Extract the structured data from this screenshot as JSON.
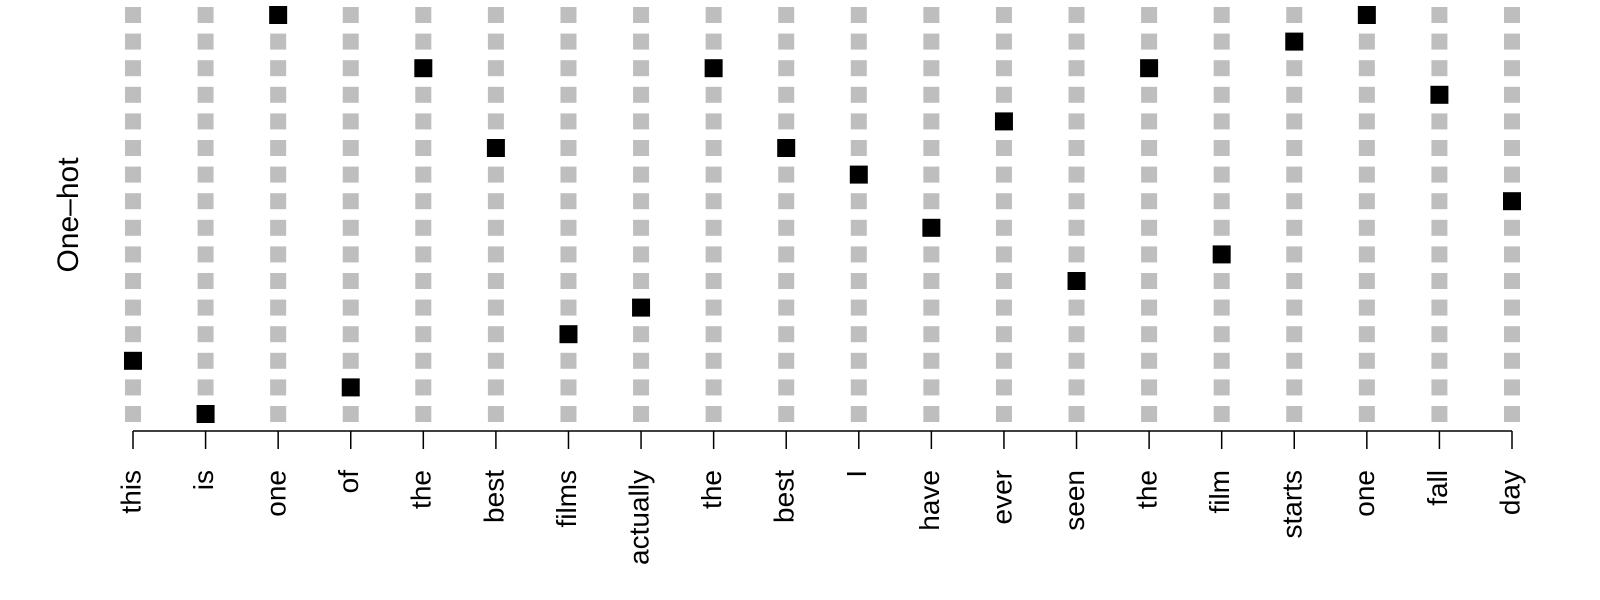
{
  "chart_data": {
    "type": "one-hot",
    "ylabel": "One–hot",
    "categories": [
      "this",
      "is",
      "one",
      "of",
      "the",
      "best",
      "films",
      "actually",
      "the",
      "best",
      "I",
      "have",
      "ever",
      "seen",
      "the",
      "film",
      "starts",
      "one",
      "fall",
      "day"
    ],
    "values": [
      2,
      0,
      15,
      1,
      13,
      10,
      3,
      4,
      13,
      10,
      9,
      7,
      11,
      5,
      13,
      6,
      14,
      15,
      12,
      8
    ],
    "ylim": [
      0,
      15
    ],
    "color": "#000000",
    "empty_color": "#bebebe"
  }
}
